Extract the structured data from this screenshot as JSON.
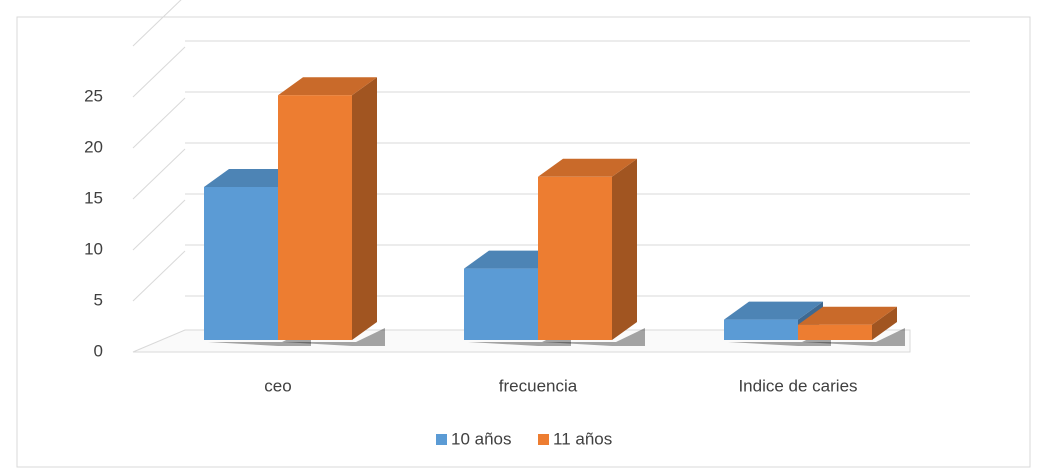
{
  "chart_data": {
    "type": "bar3d",
    "categories": [
      "ceo",
      "frecuencia",
      "Indice de caries"
    ],
    "series": [
      {
        "name": "10 años",
        "color": "#5b9bd5",
        "values": [
          15,
          7,
          2
        ]
      },
      {
        "name": "11 años",
        "color": "#ed7d31",
        "values": [
          24,
          16,
          1.5
        ]
      }
    ],
    "ylim": [
      0,
      30
    ],
    "yticks": [
      0,
      5,
      10,
      15,
      20,
      25
    ],
    "grid": true,
    "legend": "bottom"
  }
}
